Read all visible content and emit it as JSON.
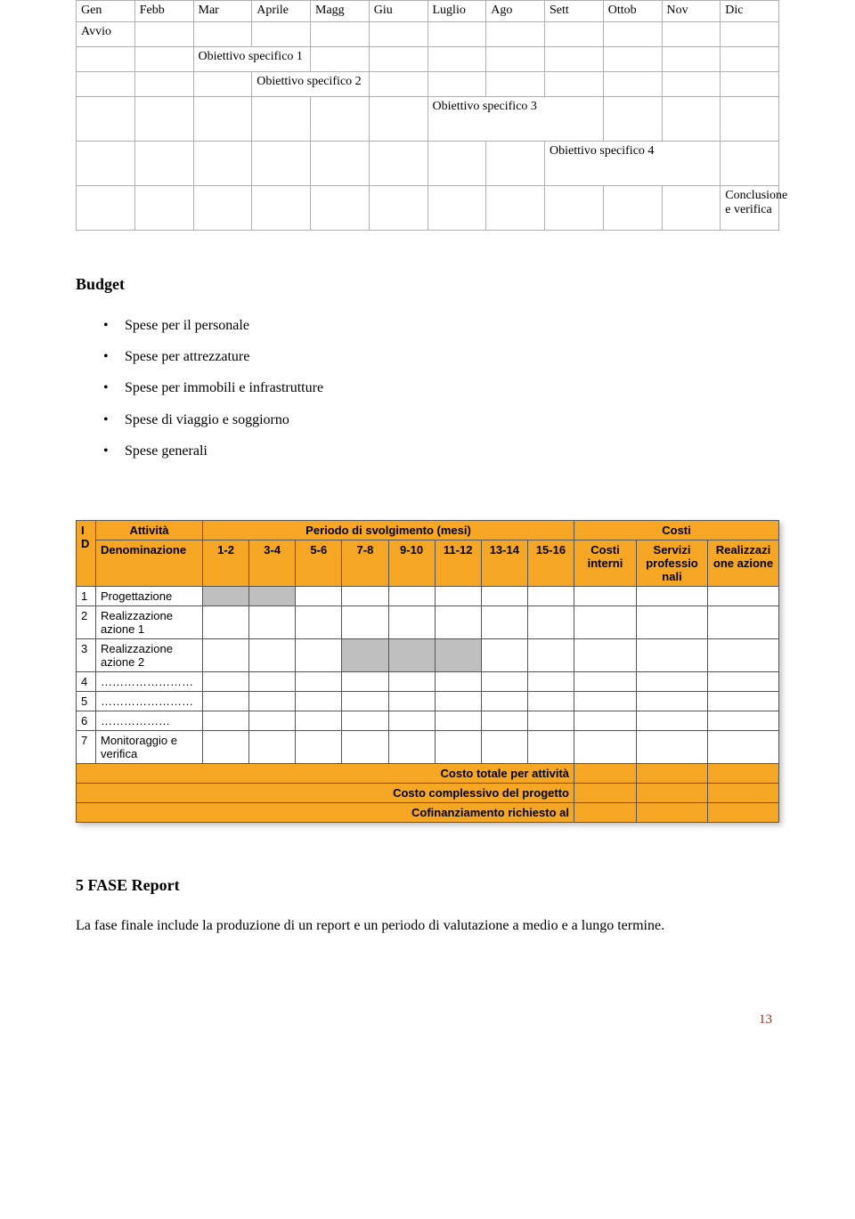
{
  "gantt": {
    "months": [
      "Gen",
      "Febb",
      "Mar",
      "Aprile",
      "Magg",
      "Giu",
      "Luglio",
      "Ago",
      "Sett",
      "Ottob",
      "Nov",
      "Dic"
    ],
    "rows": [
      {
        "label": "Avvio",
        "col": 0,
        "span": 1
      },
      {
        "label": "Obiettivo specifico 1",
        "col": 2,
        "span": 2
      },
      {
        "label": "Obiettivo specifico 2",
        "col": 3,
        "span": 2
      },
      {
        "label": "Obiettivo specifico 3",
        "col": 6,
        "span": 3
      },
      {
        "label": "Obiettivo specifico 4",
        "col": 8,
        "span": 3
      },
      {
        "label": "Conclusione e verifica",
        "col": 11,
        "span": 1
      }
    ],
    "border_color": "#b0b0b0",
    "font_size": 14
  },
  "budget": {
    "heading": "Budget",
    "items": [
      "Spese per il personale",
      "Spese per attrezzature",
      "Spese per immobili e infrastrutture",
      "Spese di viaggio e soggiorno",
      "Spese generali"
    ]
  },
  "activity_table": {
    "header_bg": "#f5a623",
    "shade_bg": "#bfbfbf",
    "border_color": "#555555",
    "top_headers": {
      "id": "I D",
      "attivita": "Attività",
      "denom": "Denominazione",
      "periodo": "Periodo di svolgimento (mesi)",
      "costi": "Costi"
    },
    "period_cols": [
      "1-2",
      "3-4",
      "5-6",
      "7-8",
      "9-10",
      "11-12",
      "13-14",
      "15-16"
    ],
    "cost_cols": [
      "Costi interni",
      "Servizi professio nali",
      "Realizzazi one azione"
    ],
    "rows": [
      {
        "id": "1",
        "name": "Progettazione",
        "shaded": [
          0,
          1
        ]
      },
      {
        "id": "2",
        "name": "Realizzazione azione 1",
        "shaded": []
      },
      {
        "id": "3",
        "name": "Realizzazione azione 2",
        "shaded": [
          3,
          4,
          5
        ]
      },
      {
        "id": "4",
        "name": "……………………",
        "shaded": []
      },
      {
        "id": "5",
        "name": "……………………",
        "shaded": []
      },
      {
        "id": "6",
        "name": "………………",
        "shaded": []
      },
      {
        "id": "7",
        "name": "Monitoraggio e verifica",
        "shaded": []
      }
    ],
    "totals": [
      "Costo totale per attività",
      "Costo complessivo del progetto",
      "Cofinanziamento richiesto al"
    ]
  },
  "report": {
    "heading": "5 FASE Report",
    "text": "La fase finale include la produzione di un report e un periodo di valutazione a medio e a lungo termine."
  },
  "page_number": "13"
}
